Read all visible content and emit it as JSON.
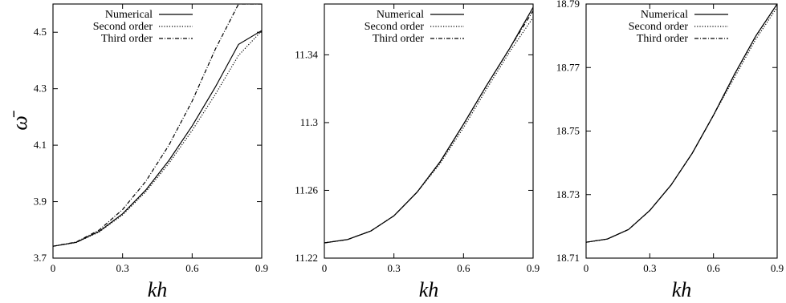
{
  "chart_data": [
    {
      "type": "line",
      "xlabel": "kh",
      "ylabel": "ω̄",
      "xlim": [
        0,
        0.9
      ],
      "ylim": [
        3.7,
        4.6
      ],
      "xticks": [
        "0",
        "0.3",
        "0.6",
        "0.9"
      ],
      "yticks": [
        "3.7",
        "3.9",
        "4.1",
        "4.3",
        "4.5"
      ],
      "legend_position": "top-right",
      "grid": false,
      "x": [
        0,
        0.1,
        0.2,
        0.3,
        0.4,
        0.5,
        0.6,
        0.7,
        0.8,
        0.9
      ],
      "series": [
        {
          "name": "Numerical",
          "dash": "solid",
          "values": [
            3.742,
            3.756,
            3.795,
            3.857,
            3.941,
            4.046,
            4.168,
            4.306,
            4.457,
            4.506
          ]
        },
        {
          "name": "Second order",
          "dash": "dotted",
          "values": [
            3.742,
            3.755,
            3.793,
            3.853,
            3.935,
            4.036,
            4.152,
            4.28,
            4.418,
            4.505
          ]
        },
        {
          "name": "Third order",
          "dash": "dashdot",
          "values": [
            3.742,
            3.757,
            3.8,
            3.872,
            3.972,
            4.1,
            4.256,
            4.44,
            4.6,
            4.6
          ]
        }
      ]
    },
    {
      "type": "line",
      "xlabel": "kh",
      "ylabel": "",
      "xlim": [
        0,
        0.9
      ],
      "ylim": [
        11.22,
        11.37
      ],
      "xticks": [
        "0",
        "0.3",
        "0.6",
        "0.9"
      ],
      "yticks": [
        "11.22",
        "11.26",
        "11.3",
        "11.34"
      ],
      "legend_position": "top-right",
      "grid": false,
      "x": [
        0,
        0.1,
        0.2,
        0.3,
        0.4,
        0.5,
        0.6,
        0.7,
        0.8,
        0.9
      ],
      "series": [
        {
          "name": "Numerical",
          "dash": "solid",
          "values": [
            11.229,
            11.231,
            11.236,
            11.245,
            11.259,
            11.277,
            11.299,
            11.322,
            11.344,
            11.368
          ]
        },
        {
          "name": "Second order",
          "dash": "dotted",
          "values": [
            11.229,
            11.231,
            11.236,
            11.245,
            11.259,
            11.276,
            11.297,
            11.32,
            11.342,
            11.362
          ]
        },
        {
          "name": "Third order",
          "dash": "dashdot",
          "values": [
            11.229,
            11.231,
            11.236,
            11.245,
            11.259,
            11.277,
            11.299,
            11.322,
            11.344,
            11.366
          ]
        }
      ]
    },
    {
      "type": "line",
      "xlabel": "kh",
      "ylabel": "",
      "xlim": [
        0,
        0.9
      ],
      "ylim": [
        18.71,
        18.79
      ],
      "xticks": [
        "0",
        "0.3",
        "0.6",
        "0.9"
      ],
      "yticks": [
        "18.71",
        "18.73",
        "18.75",
        "18.77",
        "18.79"
      ],
      "legend_position": "top-right",
      "grid": false,
      "x": [
        0,
        0.1,
        0.2,
        0.3,
        0.4,
        0.5,
        0.6,
        0.7,
        0.8,
        0.9
      ],
      "series": [
        {
          "name": "Numerical",
          "dash": "solid",
          "values": [
            18.715,
            18.716,
            18.719,
            18.725,
            18.733,
            18.743,
            18.755,
            18.768,
            18.78,
            18.79
          ]
        },
        {
          "name": "Second order",
          "dash": "dotted",
          "values": [
            18.715,
            18.716,
            18.719,
            18.725,
            18.733,
            18.743,
            18.755,
            18.767,
            18.779,
            18.789
          ]
        },
        {
          "name": "Third order",
          "dash": "dashdot",
          "values": [
            18.715,
            18.716,
            18.719,
            18.725,
            18.733,
            18.743,
            18.755,
            18.768,
            18.78,
            18.79
          ]
        }
      ]
    }
  ]
}
